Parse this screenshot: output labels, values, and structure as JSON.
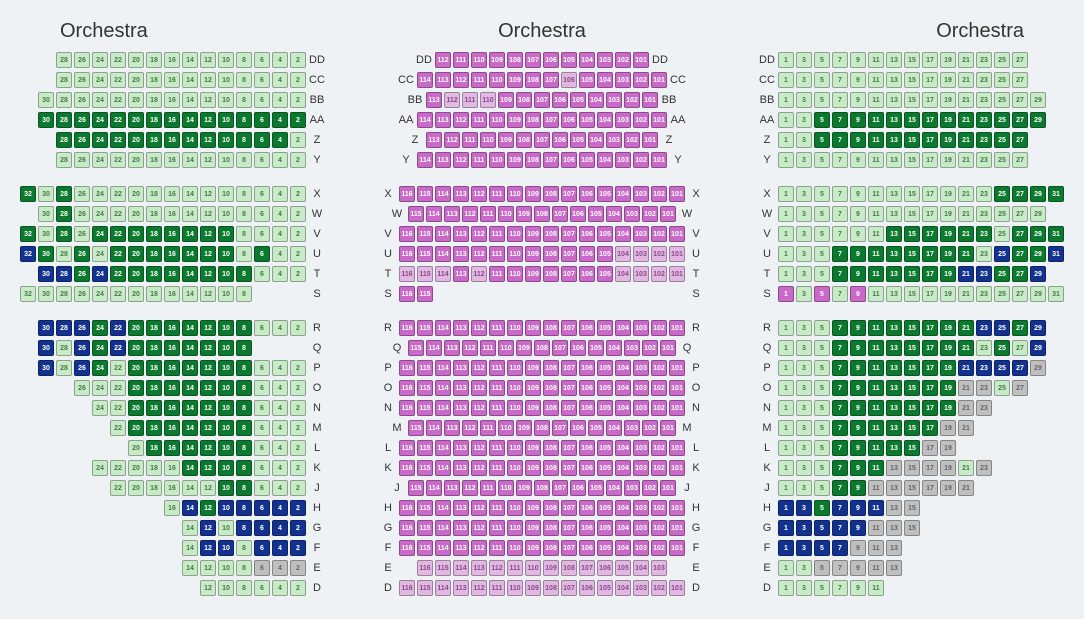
{
  "colors": {
    "lg": {
      "bg": "#c7eac7",
      "fg": "#4a7a4a"
    },
    "dg": {
      "bg": "#0b7a2e",
      "fg": "#ffffff"
    },
    "pk": {
      "bg": "#c96ac9",
      "fg": "#ffffff"
    },
    "lp": {
      "bg": "#e1b8e1",
      "fg": "#8a4a8a"
    },
    "nv": {
      "bg": "#13318f",
      "fg": "#ffffff"
    },
    "gy": {
      "bg": "#bfbfbf",
      "fg": "#666666"
    }
  },
  "titles": {
    "left": "Orchestra",
    "center": "Orchestra",
    "right": "Orchestra"
  },
  "seat_style": {
    "width": 16,
    "height": 16,
    "fontsize": 7,
    "gap": 2,
    "radius": 2
  },
  "background": "#eef2f5",
  "left": {
    "blocks": [
      {
        "rows": [
          {
            "label": "DD",
            "start": 28,
            "count": 14,
            "step": -2,
            "indent": 1,
            "colors": "lg*14"
          },
          {
            "label": "CC",
            "start": 28,
            "count": 14,
            "step": -2,
            "indent": 1,
            "colors": "lg*14"
          },
          {
            "label": "BB",
            "start": 30,
            "count": 15,
            "step": -2,
            "indent": 0,
            "colors": "lg*15"
          },
          {
            "label": "AA",
            "start": 30,
            "count": 15,
            "step": -2,
            "indent": 0,
            "colors": "dg*15"
          },
          {
            "label": "Z",
            "start": 28,
            "count": 14,
            "step": -2,
            "indent": 1,
            "colors": "dg*13,lg"
          },
          {
            "label": "Y",
            "start": 28,
            "count": 14,
            "step": -2,
            "indent": 1,
            "colors": "lg*14"
          }
        ]
      },
      {
        "rows": [
          {
            "label": "X",
            "start": 32,
            "count": 16,
            "step": -2,
            "indent": 0,
            "colors": "dg,lg,dg,lg*13"
          },
          {
            "label": "W",
            "start": 30,
            "count": 15,
            "step": -2,
            "indent": 1,
            "colors": "lg,dg,lg*13"
          },
          {
            "label": "V",
            "start": 32,
            "count": 16,
            "step": -2,
            "indent": 0,
            "colors": "dg,lg,dg,lg,dg*8,lg*4"
          },
          {
            "label": "U",
            "start": 32,
            "count": 16,
            "step": -2,
            "indent": 0,
            "colors": "nv,dg,lg,dg,lg,dg*7,lg,dg,lg*2"
          },
          {
            "label": "T",
            "start": 30,
            "count": 15,
            "step": -2,
            "indent": 1,
            "colors": "nv*2,dg,nv,dg*8,lg*3"
          },
          {
            "label": "S",
            "start": 32,
            "count": 13,
            "step": -2,
            "indent": 0,
            "colors": "lg*13",
            "trailing_spacers": 3
          }
        ]
      },
      {
        "rows": [
          {
            "label": "R",
            "start": 30,
            "count": 15,
            "step": -2,
            "indent": 0,
            "colors": "nv*3,dg,nv,dg*7,lg*3"
          },
          {
            "label": "Q",
            "start": 30,
            "count": 12,
            "step": -2,
            "indent": 0,
            "colors": "nv,lg,nv,dg,nv,dg*7",
            "trailing_spacers": 3
          },
          {
            "label": "P",
            "start": 30,
            "count": 15,
            "step": -2,
            "indent": 0,
            "colors": "nv,lg,nv,dg,lg,dg*7,lg*3"
          },
          {
            "label": "O",
            "start": 26,
            "count": 13,
            "step": -2,
            "indent": 2,
            "colors": "lg*3,dg*7,lg*3"
          },
          {
            "label": "N",
            "start": 24,
            "count": 12,
            "step": -2,
            "indent": 3,
            "colors": "lg*2,dg*7,lg*3"
          },
          {
            "label": "M",
            "start": 22,
            "count": 11,
            "step": -2,
            "indent": 4,
            "colors": "lg,dg*7,lg*3"
          },
          {
            "label": "L",
            "start": 20,
            "count": 10,
            "step": -2,
            "indent": 5,
            "colors": "lg,dg*6,lg*3"
          },
          {
            "label": "K",
            "start": 24,
            "count": 12,
            "step": -2,
            "indent": 3,
            "colors": "lg*5,dg*4,lg*3"
          },
          {
            "label": "J",
            "start": 22,
            "count": 11,
            "step": -2,
            "indent": 4,
            "colors": "lg*6,dg*2,lg*3"
          },
          {
            "label": "H",
            "start": 16,
            "count": 8,
            "step": -2,
            "indent": 7,
            "colors": "lg,nv,dg,nv*5"
          },
          {
            "label": "G",
            "start": 14,
            "count": 7,
            "step": -2,
            "indent": 8,
            "colors": "lg,nv,lg,nv*4"
          },
          {
            "label": "F",
            "start": 14,
            "count": 7,
            "step": -2,
            "indent": 8,
            "colors": "lg,nv*2,lg,nv*3"
          },
          {
            "label": "E",
            "start": 14,
            "count": 7,
            "step": -2,
            "indent": 8,
            "colors": "lg*4,gy*3"
          },
          {
            "label": "D",
            "start": 12,
            "count": 6,
            "step": -2,
            "indent": 9,
            "colors": "lg*6"
          }
        ]
      }
    ]
  },
  "center": {
    "blocks": [
      {
        "rows": [
          {
            "label": "DD",
            "start": 112,
            "count": 12,
            "step": -1,
            "colors": "pk*12"
          },
          {
            "label": "CC",
            "start": 114,
            "count": 14,
            "step": -1,
            "colors": "pk*8,lp,pk*5"
          },
          {
            "label": "BB",
            "start": 113,
            "count": 13,
            "step": -1,
            "colors": "pk,lp*3,pk*9"
          },
          {
            "label": "AA",
            "start": 114,
            "count": 14,
            "step": -1,
            "colors": "pk*14"
          },
          {
            "label": "Z",
            "start": 113,
            "count": 13,
            "step": -1,
            "colors": "pk*13"
          },
          {
            "label": "Y",
            "start": 114,
            "count": 14,
            "step": -1,
            "colors": "pk*14"
          }
        ]
      },
      {
        "rows": [
          {
            "label": "X",
            "start": 116,
            "count": 16,
            "step": -1,
            "colors": "pk*16"
          },
          {
            "label": "W",
            "start": 115,
            "count": 15,
            "step": -1,
            "colors": "pk*15"
          },
          {
            "label": "V",
            "start": 116,
            "count": 16,
            "step": -1,
            "colors": "pk*16"
          },
          {
            "label": "U",
            "start": 116,
            "count": 16,
            "step": -1,
            "colors": "pk*12,lp*4"
          },
          {
            "label": "T",
            "start": 116,
            "count": 16,
            "step": -1,
            "colors": "lp*3,pk,lp,pk*7,lp*4"
          },
          {
            "label": "S",
            "start": 116,
            "count": 2,
            "step": -1,
            "colors": "pk*2",
            "trailing_spacers": 14
          }
        ]
      },
      {
        "rows": [
          {
            "label": "R",
            "start": 116,
            "count": 16,
            "step": -1,
            "colors": "pk*16"
          },
          {
            "label": "Q",
            "start": 115,
            "count": 15,
            "step": -1,
            "colors": "pk*15"
          },
          {
            "label": "P",
            "start": 116,
            "count": 16,
            "step": -1,
            "colors": "pk*16"
          },
          {
            "label": "O",
            "start": 116,
            "count": 16,
            "step": -1,
            "colors": "pk*16"
          },
          {
            "label": "N",
            "start": 116,
            "count": 16,
            "step": -1,
            "colors": "pk*16"
          },
          {
            "label": "M",
            "start": 115,
            "count": 15,
            "step": -1,
            "colors": "pk*15"
          },
          {
            "label": "L",
            "start": 116,
            "count": 16,
            "step": -1,
            "colors": "pk*16"
          },
          {
            "label": "K",
            "start": 116,
            "count": 16,
            "step": -1,
            "colors": "pk*16"
          },
          {
            "label": "J",
            "start": 115,
            "count": 15,
            "step": -1,
            "colors": "pk*15"
          },
          {
            "label": "H",
            "start": 116,
            "count": 16,
            "step": -1,
            "colors": "pk*16"
          },
          {
            "label": "G",
            "start": 116,
            "count": 16,
            "step": -1,
            "colors": "pk*16"
          },
          {
            "label": "F",
            "start": 116,
            "count": 16,
            "step": -1,
            "colors": "pk*16"
          },
          {
            "label": "E",
            "start": 116,
            "count": 14,
            "step": -1,
            "colors": "lp*14",
            "leading_spacers": 1,
            "trailing_spacers": 1
          },
          {
            "label": "D",
            "start": 116,
            "count": 16,
            "step": -1,
            "colors": "lp*16"
          }
        ]
      }
    ]
  },
  "right": {
    "blocks": [
      {
        "rows": [
          {
            "label": "DD",
            "start": 1,
            "count": 14,
            "step": 2,
            "indent_r": 1,
            "colors": "lg*14"
          },
          {
            "label": "CC",
            "start": 1,
            "count": 14,
            "step": 2,
            "indent_r": 1,
            "colors": "lg*14"
          },
          {
            "label": "BB",
            "start": 1,
            "count": 15,
            "step": 2,
            "indent_r": 0,
            "colors": "lg*15"
          },
          {
            "label": "AA",
            "start": 1,
            "count": 15,
            "step": 2,
            "indent_r": 0,
            "colors": "lg*2,dg*13"
          },
          {
            "label": "Z",
            "start": 1,
            "count": 14,
            "step": 2,
            "indent_r": 1,
            "colors": "lg*2,dg*12"
          },
          {
            "label": "Y",
            "start": 1,
            "count": 14,
            "step": 2,
            "indent_r": 1,
            "colors": "lg*14"
          }
        ]
      },
      {
        "rows": [
          {
            "label": "X",
            "start": 1,
            "count": 16,
            "step": 2,
            "colors": "lg*12,dg*4"
          },
          {
            "label": "W",
            "start": 1,
            "count": 15,
            "step": 2,
            "indent_r": 1,
            "colors": "lg*15"
          },
          {
            "label": "V",
            "start": 1,
            "count": 16,
            "step": 2,
            "colors": "lg*6,dg*6,lg,dg*3"
          },
          {
            "label": "U",
            "start": 1,
            "count": 16,
            "step": 2,
            "colors": "lg*3,dg*8,lg,nv,dg*2,nv"
          },
          {
            "label": "T",
            "start": 1,
            "count": 15,
            "step": 2,
            "indent_r": 1,
            "colors": "lg*3,dg*7,nv*2,dg*2,nv"
          },
          {
            "label": "S",
            "start": 1,
            "count": 16,
            "step": 2,
            "colors": "pk,lg,pk,lg,pk,lg*11",
            "leading_spacers_content": [
              "pk",
              "lg",
              "pk",
              "lg",
              "pk"
            ]
          }
        ]
      },
      {
        "rows": [
          {
            "label": "R",
            "start": 1,
            "count": 15,
            "step": 2,
            "colors": "lg*3,dg*8,nv*2,dg,nv"
          },
          {
            "label": "Q",
            "start": 1,
            "count": 15,
            "step": 2,
            "colors": "lg*3,dg*8,lg,dg,lg,nv"
          },
          {
            "label": "P",
            "start": 1,
            "count": 15,
            "step": 2,
            "colors": "lg*3,dg*7,nv*4,gy"
          },
          {
            "label": "O",
            "start": 1,
            "count": 14,
            "step": 2,
            "colors": "lg*3,dg*7,gy*2,lg,gy"
          },
          {
            "label": "N",
            "start": 1,
            "count": 12,
            "step": 2,
            "colors": "lg*3,dg*7,gy*2"
          },
          {
            "label": "M",
            "start": 1,
            "count": 11,
            "step": 2,
            "colors": "lg*3,dg*6,gy*2"
          },
          {
            "label": "L",
            "start": 1,
            "count": 10,
            "step": 2,
            "colors": "lg*3,dg*5,gy*2"
          },
          {
            "label": "K",
            "start": 1,
            "count": 12,
            "step": 2,
            "colors": "lg*3,dg*3,gy*4,lg,gy"
          },
          {
            "label": "J",
            "start": 1,
            "count": 11,
            "step": 2,
            "colors": "lg*3,dg*2,gy*6"
          },
          {
            "label": "H",
            "start": 1,
            "count": 8,
            "step": 2,
            "colors": "nv*2,dg,nv*3,gy*2"
          },
          {
            "label": "G",
            "start": 1,
            "count": 8,
            "step": 2,
            "colors": "nv*5,gy*3"
          },
          {
            "label": "F",
            "start": 1,
            "count": 7,
            "step": 2,
            "colors": "nv*4,gy*3"
          },
          {
            "label": "E",
            "start": 1,
            "count": 7,
            "step": 2,
            "colors": "lg*2,gy*5"
          },
          {
            "label": "D",
            "start": 1,
            "count": 6,
            "step": 2,
            "colors": "lg*6"
          }
        ]
      }
    ]
  }
}
